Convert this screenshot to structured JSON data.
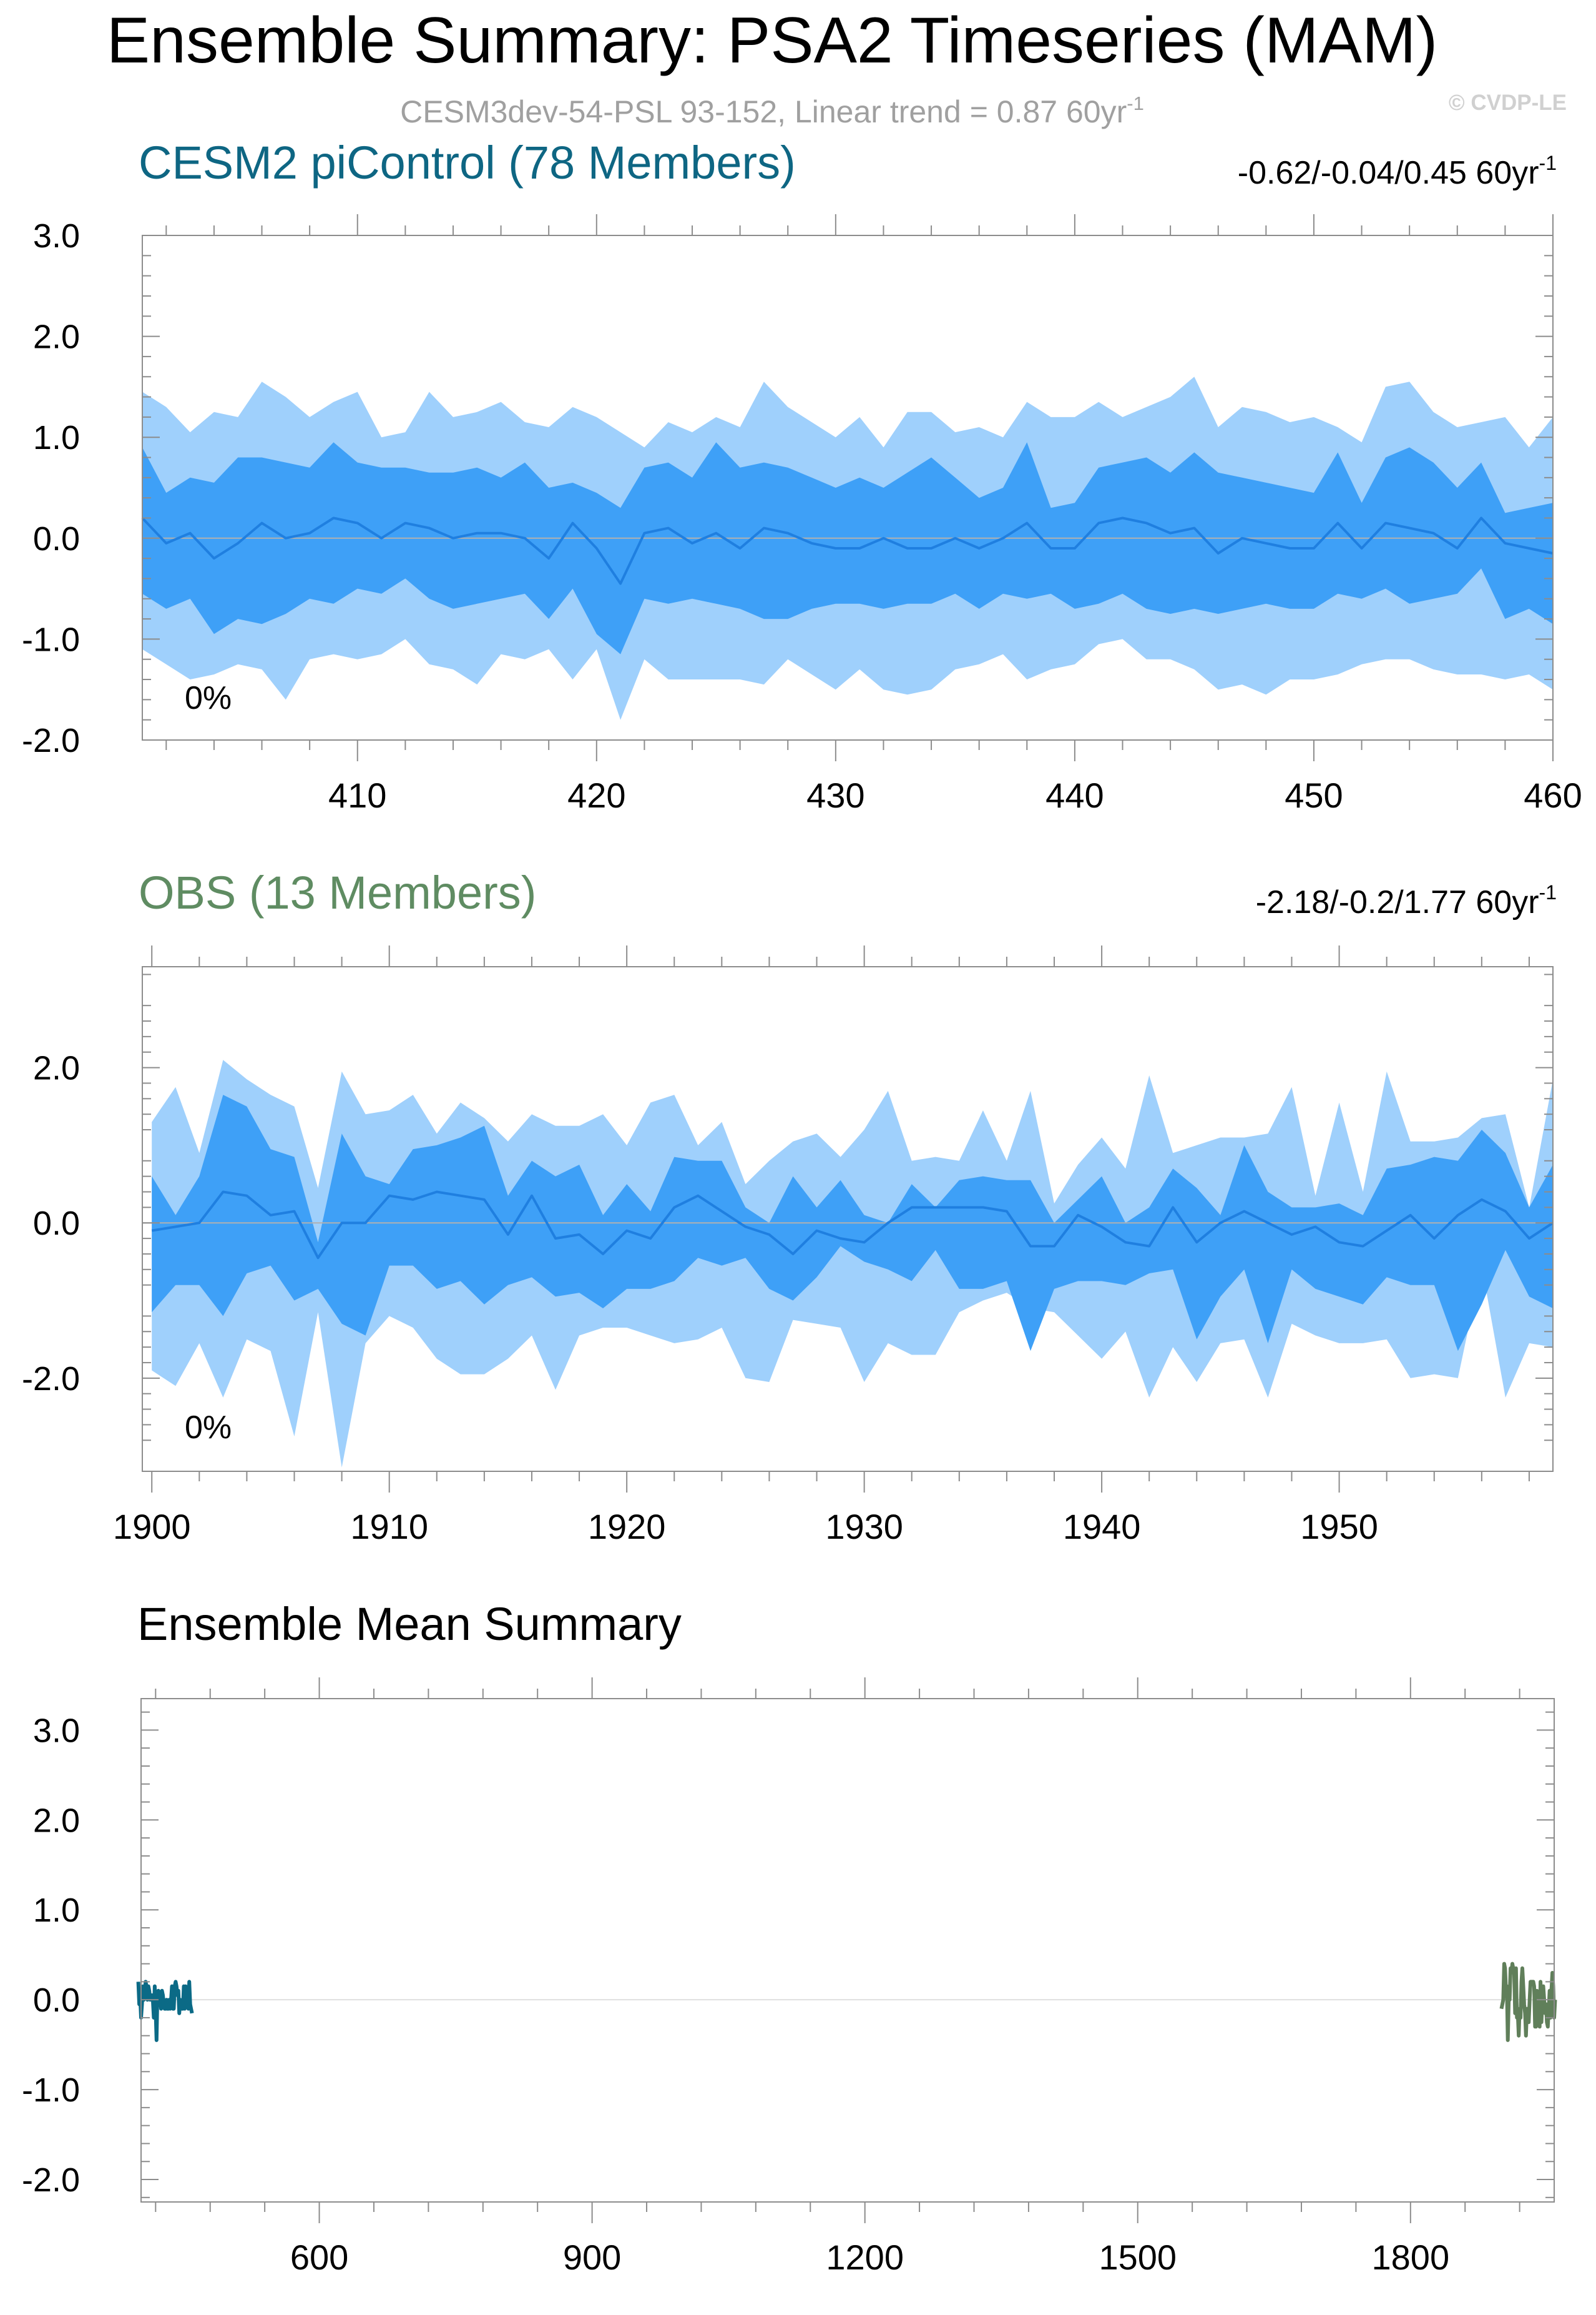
{
  "figure": {
    "title": "Ensemble Summary: PSA2 Timeseries (MAM)",
    "subtitle": "CESM3dev-54-PSL 93-152, Linear trend = 0.87 60yr",
    "subtitle_sup": "-1",
    "watermark": "© CVDP-LE"
  },
  "colors": {
    "outer_band": "#9fd0fc",
    "inner_band": "#3ea0f7",
    "mean_line": "#1f7fe0",
    "zero_line": "#b0b0b0",
    "cesm_title": "#0e6683",
    "obs_title": "#5f8c62",
    "cesm_mean": "#0b6a86",
    "obs_mean": "#607f5a",
    "subtitle": "#a0a0a0",
    "watermark": "#d0d0d0"
  },
  "chart_data": [
    {
      "type": "area",
      "id": "cesm",
      "title": "CESM2 piControl (78 Members)",
      "trend_label": "-0.62/-0.04/0.45 60yr",
      "trend_sup": "-1",
      "pct_label": "0%",
      "xlim": [
        401,
        460
      ],
      "ylim": [
        -2.0,
        3.0
      ],
      "x_ticks": [
        410,
        420,
        430,
        440,
        450,
        460
      ],
      "x_tick_labels": [
        "410",
        "420",
        "430",
        "440",
        "450",
        "460"
      ],
      "y_ticks": [
        -2.0,
        -1.0,
        0.0,
        1.0,
        2.0,
        3.0
      ],
      "y_tick_labels": [
        "-2.0",
        "-1.0",
        "0.0",
        "1.0",
        "2.0",
        "3.0"
      ],
      "x_start": 401,
      "p10": [
        -1.1,
        -1.25,
        -1.4,
        -1.35,
        -1.25,
        -1.3,
        -1.6,
        -1.2,
        -1.15,
        -1.2,
        -1.15,
        -1.0,
        -1.25,
        -1.3,
        -1.45,
        -1.15,
        -1.2,
        -1.1,
        -1.4,
        -1.1,
        -1.8,
        -1.2,
        -1.4,
        -1.4,
        -1.4,
        -1.4,
        -1.45,
        -1.2,
        -1.35,
        -1.5,
        -1.3,
        -1.5,
        -1.55,
        -1.5,
        -1.3,
        -1.25,
        -1.15,
        -1.4,
        -1.3,
        -1.25,
        -1.05,
        -1.0,
        -1.2,
        -1.2,
        -1.3,
        -1.5,
        -1.45,
        -1.55,
        -1.4,
        -1.4,
        -1.35,
        -1.25,
        -1.2,
        -1.2,
        -1.3,
        -1.35,
        -1.35,
        -1.4,
        -1.35,
        -1.5
      ],
      "p25": [
        -0.55,
        -0.7,
        -0.6,
        -0.95,
        -0.8,
        -0.85,
        -0.75,
        -0.6,
        -0.65,
        -0.5,
        -0.55,
        -0.4,
        -0.6,
        -0.7,
        -0.65,
        -0.6,
        -0.55,
        -0.8,
        -0.5,
        -0.95,
        -1.15,
        -0.6,
        -0.65,
        -0.6,
        -0.65,
        -0.7,
        -0.8,
        -0.8,
        -0.7,
        -0.65,
        -0.65,
        -0.7,
        -0.65,
        -0.65,
        -0.55,
        -0.7,
        -0.55,
        -0.6,
        -0.55,
        -0.7,
        -0.65,
        -0.55,
        -0.7,
        -0.75,
        -0.7,
        -0.75,
        -0.7,
        -0.65,
        -0.7,
        -0.7,
        -0.55,
        -0.6,
        -0.5,
        -0.65,
        -0.6,
        -0.55,
        -0.3,
        -0.8,
        -0.7,
        -0.85
      ],
      "p75": [
        0.9,
        0.45,
        0.6,
        0.55,
        0.8,
        0.8,
        0.75,
        0.7,
        0.95,
        0.75,
        0.7,
        0.7,
        0.65,
        0.65,
        0.7,
        0.6,
        0.75,
        0.5,
        0.55,
        0.45,
        0.3,
        0.7,
        0.75,
        0.6,
        0.95,
        0.7,
        0.75,
        0.7,
        0.6,
        0.5,
        0.6,
        0.5,
        0.65,
        0.8,
        0.6,
        0.4,
        0.5,
        0.95,
        0.3,
        0.35,
        0.7,
        0.75,
        0.8,
        0.65,
        0.85,
        0.65,
        0.6,
        0.55,
        0.5,
        0.45,
        0.85,
        0.35,
        0.8,
        0.9,
        0.75,
        0.5,
        0.75,
        0.25,
        0.3,
        0.35
      ],
      "p90": [
        1.45,
        1.3,
        1.05,
        1.25,
        1.2,
        1.55,
        1.4,
        1.2,
        1.35,
        1.45,
        1.0,
        1.05,
        1.45,
        1.2,
        1.25,
        1.35,
        1.15,
        1.1,
        1.3,
        1.2,
        1.05,
        0.9,
        1.15,
        1.05,
        1.2,
        1.1,
        1.55,
        1.3,
        1.15,
        1.0,
        1.2,
        0.9,
        1.25,
        1.25,
        1.05,
        1.1,
        1.0,
        1.35,
        1.2,
        1.2,
        1.35,
        1.2,
        1.3,
        1.4,
        1.6,
        1.1,
        1.3,
        1.25,
        1.15,
        1.2,
        1.1,
        0.95,
        1.5,
        1.55,
        1.25,
        1.1,
        1.15,
        1.2,
        0.9,
        1.2
      ],
      "median": [
        0.2,
        -0.05,
        0.05,
        -0.2,
        -0.05,
        0.15,
        0.0,
        0.05,
        0.2,
        0.15,
        0.0,
        0.15,
        0.1,
        0.0,
        0.05,
        0.05,
        0.0,
        -0.2,
        0.15,
        -0.1,
        -0.45,
        0.05,
        0.1,
        -0.05,
        0.05,
        -0.1,
        0.1,
        0.05,
        -0.05,
        -0.1,
        -0.1,
        0.0,
        -0.1,
        -0.1,
        0.0,
        -0.1,
        0.0,
        0.15,
        -0.1,
        -0.1,
        0.15,
        0.2,
        0.15,
        0.05,
        0.1,
        -0.15,
        0.0,
        -0.05,
        -0.1,
        -0.1,
        0.15,
        -0.1,
        0.15,
        0.1,
        0.05,
        -0.1,
        0.2,
        -0.05,
        -0.1,
        -0.15
      ]
    },
    {
      "type": "area",
      "id": "obs",
      "title": "OBS (13 Members)",
      "trend_label": "-2.18/-0.2/1.77 60yr",
      "trend_sup": "-1",
      "pct_label": "0%",
      "xlim": [
        1899.6,
        1959
      ],
      "ylim": [
        -3.2,
        3.3
      ],
      "x_ticks": [
        1900,
        1910,
        1920,
        1930,
        1940,
        1950
      ],
      "x_tick_labels": [
        "1900",
        "1910",
        "1920",
        "1930",
        "1940",
        "1950"
      ],
      "y_ticks": [
        -2.0,
        0.0,
        2.0
      ],
      "y_tick_labels": [
        "-2.0",
        "0.0",
        "2.0"
      ],
      "x_start": 1900,
      "p10": [
        -1.9,
        -2.1,
        -1.55,
        -2.25,
        -1.5,
        -1.65,
        -2.75,
        -1.15,
        -3.15,
        -1.55,
        -1.2,
        -1.35,
        -1.75,
        -1.95,
        -1.95,
        -1.75,
        -1.45,
        -2.15,
        -1.45,
        -1.35,
        -1.35,
        -1.45,
        -1.55,
        -1.5,
        -1.35,
        -2.0,
        -2.05,
        -1.25,
        -1.3,
        -1.35,
        -2.05,
        -1.55,
        -1.7,
        -1.7,
        -1.15,
        -1.0,
        -0.9,
        -1.1,
        -1.15,
        -1.45,
        -1.75,
        -1.4,
        -2.25,
        -1.6,
        -2.05,
        -1.55,
        -1.5,
        -2.25,
        -1.3,
        -1.45,
        -1.55,
        -1.55,
        -1.5,
        -2.0,
        -1.95,
        -2.0,
        -0.55,
        -2.25,
        -1.55,
        -1.6
      ],
      "p25": [
        -1.15,
        -0.8,
        -0.8,
        -1.2,
        -0.65,
        -0.55,
        -1.0,
        -0.85,
        -1.3,
        -1.45,
        -0.55,
        -0.55,
        -0.85,
        -0.75,
        -1.05,
        -0.8,
        -0.7,
        -0.95,
        -0.9,
        -1.1,
        -0.85,
        -0.85,
        -0.75,
        -0.45,
        -0.55,
        -0.45,
        -0.85,
        -1.0,
        -0.7,
        -0.3,
        -0.5,
        -0.6,
        -0.75,
        -0.35,
        -0.85,
        -0.85,
        -0.75,
        -1.65,
        -0.85,
        -0.75,
        -0.75,
        -0.8,
        -0.65,
        -0.6,
        -1.5,
        -0.95,
        -0.6,
        -1.55,
        -0.6,
        -0.85,
        -0.95,
        -1.05,
        -0.7,
        -0.8,
        -0.8,
        -1.65,
        -1.05,
        -0.35,
        -0.95,
        -1.1
      ],
      "p75": [
        0.6,
        0.1,
        0.6,
        1.65,
        1.5,
        0.95,
        0.85,
        -0.25,
        1.15,
        0.6,
        0.5,
        0.95,
        1.0,
        1.1,
        1.25,
        0.35,
        0.8,
        0.6,
        0.75,
        0.1,
        0.5,
        0.15,
        0.85,
        0.8,
        0.8,
        0.2,
        0.0,
        0.6,
        0.2,
        0.55,
        0.1,
        0.0,
        0.5,
        0.2,
        0.55,
        0.6,
        0.55,
        0.55,
        0.0,
        0.3,
        0.6,
        0.0,
        0.2,
        0.7,
        0.45,
        0.1,
        1.0,
        0.4,
        0.2,
        0.2,
        0.25,
        0.1,
        0.7,
        0.75,
        0.85,
        0.8,
        1.2,
        0.9,
        0.2,
        0.75
      ],
      "p90": [
        1.3,
        1.75,
        0.9,
        2.1,
        1.85,
        1.65,
        1.5,
        0.45,
        1.95,
        1.4,
        1.45,
        1.65,
        1.15,
        1.55,
        1.35,
        1.05,
        1.4,
        1.25,
        1.25,
        1.4,
        1.0,
        1.55,
        1.65,
        1.0,
        1.3,
        0.5,
        0.8,
        1.05,
        1.15,
        0.85,
        1.2,
        1.7,
        0.8,
        0.85,
        0.8,
        1.45,
        0.8,
        1.7,
        0.25,
        0.75,
        1.1,
        0.7,
        1.9,
        0.9,
        1.0,
        1.1,
        1.1,
        1.15,
        1.75,
        0.35,
        1.55,
        0.4,
        1.95,
        1.05,
        1.05,
        1.1,
        1.35,
        1.4,
        0.2,
        1.85
      ],
      "median": [
        -0.1,
        -0.05,
        0.0,
        0.4,
        0.35,
        0.1,
        0.15,
        -0.45,
        0.0,
        0.0,
        0.35,
        0.3,
        0.4,
        0.35,
        0.3,
        -0.15,
        0.35,
        -0.2,
        -0.15,
        -0.4,
        -0.1,
        -0.2,
        0.2,
        0.35,
        0.15,
        -0.05,
        -0.15,
        -0.4,
        -0.1,
        -0.2,
        -0.25,
        0.0,
        0.2,
        0.2,
        0.2,
        0.2,
        0.15,
        -0.3,
        -0.3,
        0.1,
        -0.05,
        -0.25,
        -0.3,
        0.2,
        -0.25,
        0.0,
        0.15,
        0.0,
        -0.15,
        -0.05,
        -0.25,
        -0.3,
        -0.1,
        0.1,
        -0.2,
        0.1,
        0.3,
        0.15,
        -0.2,
        0.0
      ]
    },
    {
      "type": "line",
      "id": "summary",
      "title": "Ensemble Mean Summary",
      "xlim": [
        404,
        1958
      ],
      "ylim": [
        -2.25,
        3.35
      ],
      "x_ticks": [
        600,
        900,
        1200,
        1500,
        1800
      ],
      "x_tick_labels": [
        "600",
        "900",
        "1200",
        "1500",
        "1800"
      ],
      "y_ticks": [
        -2.0,
        -1.0,
        0.0,
        1.0,
        2.0,
        3.0
      ],
      "y_tick_labels": [
        "-2.0",
        "-1.0",
        "0.0",
        "1.0",
        "2.0",
        "3.0"
      ],
      "series": [
        {
          "name": "CESM2 piControl",
          "x_start": 401,
          "ref": "cesm"
        },
        {
          "name": "OBS",
          "x_start": 1900,
          "ref": "obs"
        }
      ]
    }
  ]
}
